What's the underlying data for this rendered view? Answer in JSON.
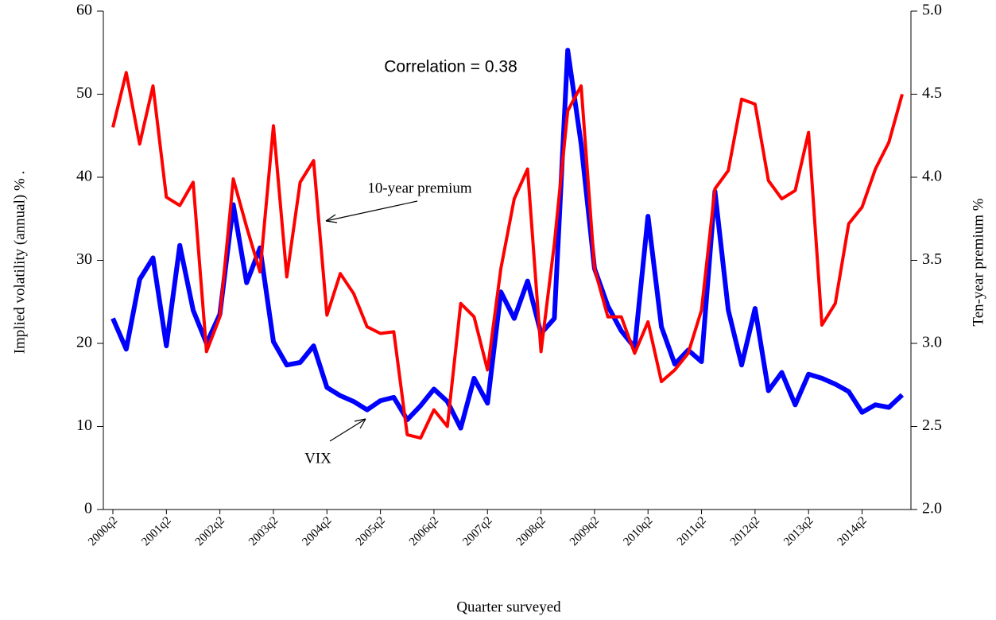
{
  "chart_data": {
    "type": "line",
    "x_label": "Quarter surveyed",
    "y_label": "Implied volatility (annual) %  .",
    "y2_label": "Ten-year premium  %",
    "annotations": [
      "Correlation = 0.38"
    ],
    "categories": [
      "2000q2",
      null,
      null,
      null,
      "2001q2",
      null,
      null,
      null,
      "2002q2",
      null,
      null,
      null,
      "2003q2",
      null,
      null,
      null,
      "2004q2",
      null,
      null,
      null,
      "2005q2",
      null,
      null,
      null,
      "2006q2",
      null,
      null,
      null,
      "2007q2",
      null,
      null,
      null,
      "2008q2",
      null,
      null,
      null,
      "2009q2",
      null,
      null,
      null,
      "2010q2",
      null,
      null,
      null,
      "2011q2",
      null,
      null,
      null,
      "2012q2",
      null,
      null,
      null,
      "2013q2",
      null,
      null,
      null,
      "2014q2",
      null,
      null,
      null
    ],
    "ylim": [
      0,
      60
    ],
    "yticks": [
      0,
      10,
      20,
      30,
      40,
      50,
      60
    ],
    "y2lim": [
      2,
      5
    ],
    "y2ticks": [
      {
        "value": 2,
        "label": "2.0"
      },
      {
        "value": 2.5,
        "label": "2.5"
      },
      {
        "value": 3,
        "label": "3.0"
      },
      {
        "value": 3.5,
        "label": "3.5"
      },
      {
        "value": 4,
        "label": "4.0"
      },
      {
        "value": 4.5,
        "label": "4.5"
      },
      {
        "value": 5,
        "label": "5.0"
      }
    ],
    "series": [
      {
        "name": "VIX",
        "color": "#0000ff",
        "values": [
          23,
          19.3,
          27.7,
          30.3,
          19.7,
          31.8,
          24,
          20,
          23.5,
          36.7,
          27.3,
          31.5,
          20.2,
          17.4,
          17.7,
          19.7,
          14.7,
          13.7,
          13,
          12,
          13.1,
          13.5,
          10.8,
          12.5,
          14.5,
          13,
          9.8,
          15.8,
          12.8,
          26.2,
          23,
          27.5,
          21.2,
          23,
          55.3,
          44,
          29,
          24.5,
          21.5,
          19.5,
          35.3,
          22,
          17.5,
          19.2,
          17.8,
          38.3,
          24,
          17.4,
          24.2,
          14.3,
          16.5,
          12.6,
          16.3,
          15.8,
          15.1,
          14.2,
          11.7,
          12.6,
          12.3,
          13.8
        ]
      },
      {
        "name": "10-year premium",
        "color": "#ff0000",
        "axis": "y2",
        "values": [
          4.3,
          4.63,
          4.2,
          4.55,
          3.88,
          3.83,
          3.97,
          2.95,
          3.16,
          3.99,
          3.7,
          3.43,
          4.31,
          3.4,
          3.97,
          4.1,
          3.17,
          3.42,
          3.3,
          3.1,
          3.06,
          3.07,
          2.45,
          2.43,
          2.6,
          2.5,
          3.24,
          3.16,
          2.84,
          3.45,
          3.87,
          4.05,
          2.95,
          3.6,
          4.4,
          4.55,
          3.45,
          3.16,
          3.16,
          2.94,
          3.13,
          2.77,
          2.84,
          2.94,
          3.2,
          3.93,
          4.04,
          4.47,
          4.44,
          3.98,
          3.87,
          3.92,
          4.27,
          3.11,
          3.24,
          3.72,
          3.82,
          4.05,
          4.21,
          4.5
        ]
      }
    ]
  }
}
